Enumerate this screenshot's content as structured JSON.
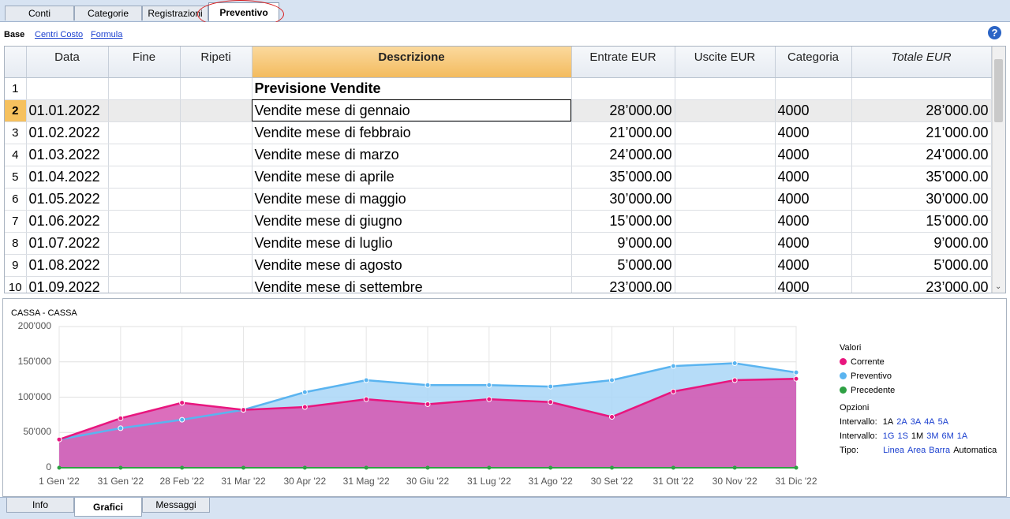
{
  "top_tabs": [
    "Conti",
    "Categorie",
    "Registrazioni",
    "Preventivo"
  ],
  "views": {
    "base": "Base",
    "cost_centers": "Centri Costo",
    "formula": "Formula"
  },
  "help_label": "?",
  "table": {
    "columns": [
      "Data",
      "Fine",
      "Ripeti",
      "Descrizione",
      "Entrate EUR",
      "Uscite EUR",
      "Categoria",
      "Totale EUR"
    ],
    "rows": [
      {
        "n": "1",
        "data": "",
        "fine": "",
        "ripeti": "",
        "desc": "Previsione Vendite",
        "entrate": "",
        "uscite": "",
        "cat": "",
        "tot": ""
      },
      {
        "n": "2",
        "data": "01.01.2022",
        "fine": "",
        "ripeti": "",
        "desc": "Vendite mese di gennaio",
        "entrate": "28’000.00",
        "uscite": "",
        "cat": "4000",
        "tot": "28’000.00"
      },
      {
        "n": "3",
        "data": "01.02.2022",
        "fine": "",
        "ripeti": "",
        "desc": "Vendite mese di febbraio",
        "entrate": "21’000.00",
        "uscite": "",
        "cat": "4000",
        "tot": "21’000.00"
      },
      {
        "n": "4",
        "data": "01.03.2022",
        "fine": "",
        "ripeti": "",
        "desc": "Vendite mese di marzo",
        "entrate": "24’000.00",
        "uscite": "",
        "cat": "4000",
        "tot": "24’000.00"
      },
      {
        "n": "5",
        "data": "01.04.2022",
        "fine": "",
        "ripeti": "",
        "desc": "Vendite mese di aprile",
        "entrate": "35’000.00",
        "uscite": "",
        "cat": "4000",
        "tot": "35’000.00"
      },
      {
        "n": "6",
        "data": "01.05.2022",
        "fine": "",
        "ripeti": "",
        "desc": "Vendite mese di maggio",
        "entrate": "30’000.00",
        "uscite": "",
        "cat": "4000",
        "tot": "30’000.00"
      },
      {
        "n": "7",
        "data": "01.06.2022",
        "fine": "",
        "ripeti": "",
        "desc": "Vendite mese di giugno",
        "entrate": "15’000.00",
        "uscite": "",
        "cat": "4000",
        "tot": "15’000.00"
      },
      {
        "n": "8",
        "data": "01.07.2022",
        "fine": "",
        "ripeti": "",
        "desc": "Vendite mese di luglio",
        "entrate": "9’000.00",
        "uscite": "",
        "cat": "4000",
        "tot": "9’000.00"
      },
      {
        "n": "9",
        "data": "01.08.2022",
        "fine": "",
        "ripeti": "",
        "desc": "Vendite mese di agosto",
        "entrate": "5’000.00",
        "uscite": "",
        "cat": "4000",
        "tot": "5’000.00"
      },
      {
        "n": "10",
        "data": "01.09.2022",
        "fine": "",
        "ripeti": "",
        "desc": "Vendite mese di settembre",
        "entrate": "23’000.00",
        "uscite": "",
        "cat": "4000",
        "tot": "23’000.00"
      }
    ]
  },
  "chart": {
    "title": "CASSA - CASSA",
    "legend_title": "Valori",
    "legend": [
      {
        "name": "Corrente",
        "color": "#e8167e"
      },
      {
        "name": "Preventivo",
        "color": "#5ab4f0"
      },
      {
        "name": "Precedente",
        "color": "#2ea043"
      }
    ],
    "options_title": "Opzioni",
    "interval1_label": "Intervallo:",
    "interval1_options": [
      "1A",
      "2A",
      "3A",
      "4A",
      "5A"
    ],
    "interval1_selected": "1A",
    "interval2_label": "Intervallo:",
    "interval2_options": [
      "1G",
      "1S",
      "1M",
      "3M",
      "6M",
      "1A"
    ],
    "interval2_selected": "1M",
    "type_label": "Tipo:",
    "type_options": [
      "Linea",
      "Area",
      "Barra",
      "Automatica"
    ],
    "type_selected": "Automatica"
  },
  "chart_data": {
    "type": "area",
    "title": "CASSA - CASSA",
    "x": [
      "1 Gen '22",
      "31 Gen '22",
      "28 Feb '22",
      "31 Mar '22",
      "30 Apr '22",
      "31 Mag '22",
      "30 Giu '22",
      "31 Lug '22",
      "31 Ago '22",
      "30 Set '22",
      "31 Ott '22",
      "30 Nov '22",
      "31 Dic '22"
    ],
    "y_ticks": [
      "200'000",
      "150'000",
      "100'000",
      "50'000",
      "0"
    ],
    "ylim": [
      0,
      200000
    ],
    "grid": true,
    "legend_position": "right",
    "series": [
      {
        "name": "Corrente",
        "color": "#e8167e",
        "values": [
          40000,
          70000,
          92000,
          82000,
          86000,
          97000,
          90000,
          97000,
          93000,
          72000,
          108000,
          124000,
          126000
        ]
      },
      {
        "name": "Preventivo",
        "color": "#5ab4f0",
        "values": [
          40000,
          56000,
          68000,
          82000,
          107000,
          124000,
          117000,
          117000,
          115000,
          124000,
          144000,
          148000,
          135000
        ]
      },
      {
        "name": "Precedente",
        "color": "#2ea043",
        "values": [
          0,
          0,
          0,
          0,
          0,
          0,
          0,
          0,
          0,
          0,
          0,
          0,
          0
        ]
      }
    ]
  },
  "bottom_tabs": [
    "Info",
    "Grafici",
    "Messaggi"
  ]
}
